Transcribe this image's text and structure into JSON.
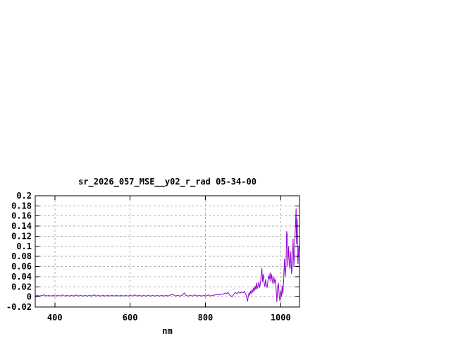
{
  "window": {
    "background": "#ffffff"
  },
  "chart_data": {
    "type": "line",
    "title": "sr_2026_057_MSE__y02_r_rad 05-34-00",
    "xlabel": "nm",
    "ylabel": "",
    "xlim": [
      348,
      1050
    ],
    "ylim": [
      -0.02,
      0.2
    ],
    "grid": true,
    "legend_position": "none",
    "xticks": [
      {
        "label": "400",
        "value": 400
      },
      {
        "label": "600",
        "value": 600
      },
      {
        "label": "800",
        "value": 800
      },
      {
        "label": "1000",
        "value": 1000
      }
    ],
    "yticks": [
      {
        "label": "0.2",
        "value": 0.2
      },
      {
        "label": "0.18",
        "value": 0.18
      },
      {
        "label": "0.16",
        "value": 0.16
      },
      {
        "label": "0.14",
        "value": 0.14
      },
      {
        "label": "0.12",
        "value": 0.12
      },
      {
        "label": "0.1",
        "value": 0.1
      },
      {
        "label": "0.08",
        "value": 0.08
      },
      {
        "label": "0.06",
        "value": 0.06
      },
      {
        "label": "0.04",
        "value": 0.04
      },
      {
        "label": "0.02",
        "value": 0.02
      },
      {
        "label": "0",
        "value": 0
      },
      {
        "label": "-0.02",
        "value": -0.02
      }
    ],
    "colors": {
      "line": "#9400d3",
      "frame": "#000000",
      "grid": "#b0b0b0",
      "background": "#ffffff",
      "text": "#000000"
    },
    "series": [
      {
        "name": "sr_2026_057_MSE__y02_r_rad",
        "points": [
          [
            348,
            0.002
          ],
          [
            354,
            0.003
          ],
          [
            360,
            0.002
          ],
          [
            366,
            0.003
          ],
          [
            372,
            0.004
          ],
          [
            378,
            0.002
          ],
          [
            384,
            0.003
          ],
          [
            390,
            0.002
          ],
          [
            396,
            0.003
          ],
          [
            402,
            0.002
          ],
          [
            408,
            0.003
          ],
          [
            414,
            0.002
          ],
          [
            420,
            0.004
          ],
          [
            426,
            0.002
          ],
          [
            432,
            0.003
          ],
          [
            438,
            0.002
          ],
          [
            444,
            0.003
          ],
          [
            450,
            0.002
          ],
          [
            456,
            0.004
          ],
          [
            462,
            0.002
          ],
          [
            468,
            0.003
          ],
          [
            474,
            0.002
          ],
          [
            480,
            0.003
          ],
          [
            486,
            0.002
          ],
          [
            492,
            0.003
          ],
          [
            498,
            0.002
          ],
          [
            504,
            0.004
          ],
          [
            510,
            0.002
          ],
          [
            516,
            0.003
          ],
          [
            522,
            0.002
          ],
          [
            528,
            0.003
          ],
          [
            534,
            0.002
          ],
          [
            540,
            0.003
          ],
          [
            546,
            0.002
          ],
          [
            552,
            0.003
          ],
          [
            558,
            0.002
          ],
          [
            564,
            0.003
          ],
          [
            570,
            0.002
          ],
          [
            576,
            0.003
          ],
          [
            582,
            0.002
          ],
          [
            588,
            0.003
          ],
          [
            594,
            0.002
          ],
          [
            600,
            0.003
          ],
          [
            606,
            0.002
          ],
          [
            612,
            0.004
          ],
          [
            618,
            0.002
          ],
          [
            624,
            0.003
          ],
          [
            630,
            0.002
          ],
          [
            636,
            0.003
          ],
          [
            642,
            0.002
          ],
          [
            648,
            0.003
          ],
          [
            654,
            0.002
          ],
          [
            660,
            0.003
          ],
          [
            666,
            0.002
          ],
          [
            672,
            0.003
          ],
          [
            678,
            0.002
          ],
          [
            684,
            0.003
          ],
          [
            690,
            0.002
          ],
          [
            696,
            0.003
          ],
          [
            702,
            0.002
          ],
          [
            708,
            0.004
          ],
          [
            714,
            0.005
          ],
          [
            720,
            0.002
          ],
          [
            726,
            0.003
          ],
          [
            732,
            0.002
          ],
          [
            738,
            0.003
          ],
          [
            744,
            0.008
          ],
          [
            748,
            0.003
          ],
          [
            754,
            0.002
          ],
          [
            760,
            0.003
          ],
          [
            766,
            0.002
          ],
          [
            772,
            0.004
          ],
          [
            778,
            0.002
          ],
          [
            784,
            0.003
          ],
          [
            790,
            0.002
          ],
          [
            796,
            0.003
          ],
          [
            802,
            0.002
          ],
          [
            808,
            0.004
          ],
          [
            814,
            0.002
          ],
          [
            820,
            0.003
          ],
          [
            826,
            0.004
          ],
          [
            832,
            0.005
          ],
          [
            838,
            0.004
          ],
          [
            844,
            0.006
          ],
          [
            848,
            0.005
          ],
          [
            852,
            0.008
          ],
          [
            856,
            0.006
          ],
          [
            860,
            0.009
          ],
          [
            864,
            0.004
          ],
          [
            868,
            0.002
          ],
          [
            872,
            0.001
          ],
          [
            876,
            0.006
          ],
          [
            880,
            0.009
          ],
          [
            884,
            0.006
          ],
          [
            888,
            0.01
          ],
          [
            892,
            0.007
          ],
          [
            896,
            0.01
          ],
          [
            900,
            0.008
          ],
          [
            904,
            0.011
          ],
          [
            908,
            0.004
          ],
          [
            912,
            -0.009
          ],
          [
            914,
            0.002
          ],
          [
            916,
            0.008
          ],
          [
            918,
            0.004
          ],
          [
            920,
            0.012
          ],
          [
            922,
            0.006
          ],
          [
            924,
            0.015
          ],
          [
            926,
            0.009
          ],
          [
            928,
            0.018
          ],
          [
            930,
            0.012
          ],
          [
            932,
            0.022
          ],
          [
            934,
            0.014
          ],
          [
            936,
            0.028
          ],
          [
            938,
            0.016
          ],
          [
            940,
            0.022
          ],
          [
            942,
            0.03
          ],
          [
            944,
            0.018
          ],
          [
            946,
            0.025
          ],
          [
            948,
            0.04
          ],
          [
            950,
            0.057
          ],
          [
            952,
            0.03
          ],
          [
            954,
            0.045
          ],
          [
            956,
            0.028
          ],
          [
            958,
            0.02
          ],
          [
            960,
            0.035
          ],
          [
            962,
            0.025
          ],
          [
            964,
            0.018
          ],
          [
            966,
            0.03
          ],
          [
            968,
            0.042
          ],
          [
            970,
            0.035
          ],
          [
            972,
            0.048
          ],
          [
            974,
            0.03
          ],
          [
            976,
            0.045
          ],
          [
            978,
            0.032
          ],
          [
            980,
            0.025
          ],
          [
            982,
            0.04
          ],
          [
            984,
            0.028
          ],
          [
            986,
            0.035
          ],
          [
            988,
            0.015
          ],
          [
            990,
            -0.01
          ],
          [
            992,
            0.02
          ],
          [
            994,
            0.028
          ],
          [
            996,
            0.002
          ],
          [
            998,
            -0.008
          ],
          [
            1000,
            0.012
          ],
          [
            1002,
            0.0
          ],
          [
            1004,
            0.022
          ],
          [
            1006,
            0.005
          ],
          [
            1008,
            0.035
          ],
          [
            1010,
            0.075
          ],
          [
            1012,
            0.04
          ],
          [
            1014,
            0.06
          ],
          [
            1016,
            0.13
          ],
          [
            1018,
            0.12
          ],
          [
            1019,
            0.06
          ],
          [
            1021,
            0.1
          ],
          [
            1023,
            0.065
          ],
          [
            1025,
            0.055
          ],
          [
            1027,
            0.09
          ],
          [
            1029,
            0.045
          ],
          [
            1031,
            0.065
          ],
          [
            1033,
            0.115
          ],
          [
            1035,
            0.06
          ],
          [
            1037,
            0.1
          ],
          [
            1039,
            0.135
          ],
          [
            1041,
            0.175
          ],
          [
            1042,
            0.105
          ],
          [
            1044,
            0.155
          ],
          [
            1045,
            0.08
          ],
          [
            1046,
            0.065
          ],
          [
            1048,
            0.1
          ],
          [
            1050,
            0.09
          ]
        ]
      }
    ]
  }
}
